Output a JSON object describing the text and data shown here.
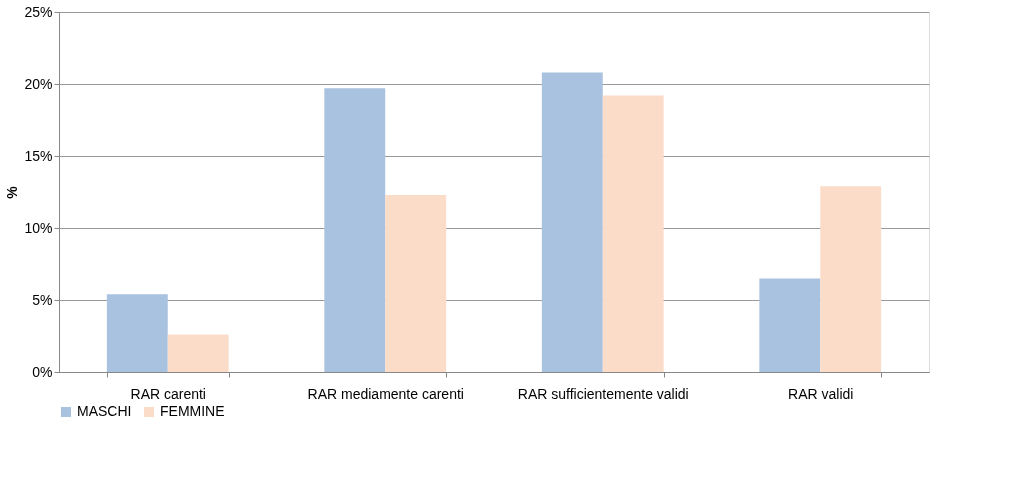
{
  "chart_data": {
    "type": "bar",
    "ylabel": "%",
    "categories": [
      "RAR carenti",
      "RAR mediamente carenti",
      "RAR sufficientemente validi",
      "RAR validi"
    ],
    "series": [
      {
        "name": "MASCHI",
        "color": "#a9c2e0",
        "values": [
          5.4,
          19.7,
          20.8,
          6.5
        ]
      },
      {
        "name": "FEMMINE",
        "color": "#fbdcc8",
        "values": [
          2.6,
          12.3,
          19.2,
          12.9
        ]
      }
    ],
    "ylim": [
      0,
      25
    ],
    "yticks": [
      {
        "value": 0,
        "label": "0%"
      },
      {
        "value": 5,
        "label": "5%"
      },
      {
        "value": 10,
        "label": "10%"
      },
      {
        "value": 15,
        "label": "15%"
      },
      {
        "value": 20,
        "label": "20%"
      },
      {
        "value": 25,
        "label": "25%"
      }
    ],
    "grid": "y",
    "legend": "bottom"
  }
}
